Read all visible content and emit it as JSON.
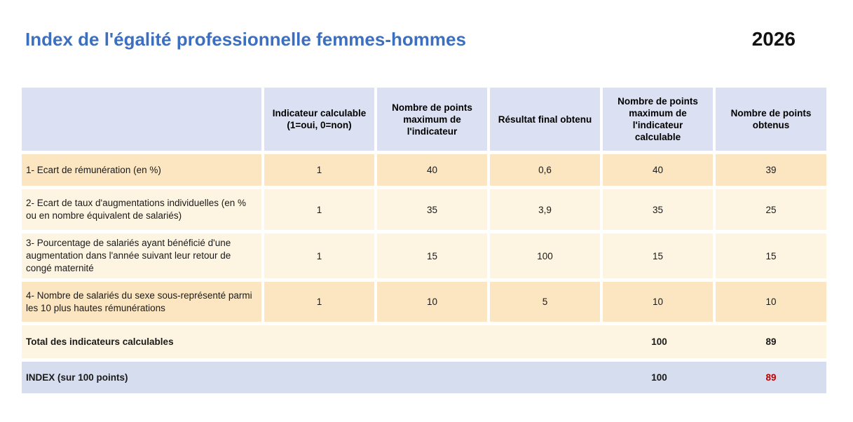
{
  "page": {
    "title": "Index de l'égalité professionnelle femmes-hommes",
    "year": "2026"
  },
  "table": {
    "column_headers": [
      "Indicateur calculable (1=oui, 0=non)",
      "Nombre de points maximum de l'indicateur",
      "Résultat final obtenu",
      "Nombre de points maximum de l'indicateur calculable",
      "Nombre de points obtenus"
    ],
    "rows": [
      {
        "label": "1- Ecart de rémunération (en %)",
        "indicateur_calculable": "1",
        "points_maximum": "40",
        "resultat_final": "0,6",
        "points_maximum_calculable": "40",
        "points_obtenus": "39"
      },
      {
        "label": "2- Ecart de taux d'augmentations individuelles (en % ou en nombre équivalent de salariés)",
        "indicateur_calculable": "1",
        "points_maximum": "35",
        "resultat_final": "3,9",
        "points_maximum_calculable": "35",
        "points_obtenus": "25"
      },
      {
        "label": "3- Pourcentage de salariés ayant bénéficié d'une augmentation dans l'année suivant leur retour de congé maternité",
        "indicateur_calculable": "1",
        "points_maximum": "15",
        "resultat_final": "100",
        "points_maximum_calculable": "15",
        "points_obtenus": "15"
      },
      {
        "label": "4- Nombre de salariés du sexe sous-représenté parmi les 10 plus hautes rémunérations",
        "indicateur_calculable": "1",
        "points_maximum": "10",
        "resultat_final": "5",
        "points_maximum_calculable": "10",
        "points_obtenus": "10"
      }
    ],
    "total_row": {
      "label": "Total des indicateurs calculables",
      "points_maximum_calculable": "100",
      "points_obtenus": "89"
    },
    "index_row": {
      "label": "INDEX (sur 100 points)",
      "points_maximum_calculable": "100",
      "points_obtenus": "89"
    }
  },
  "colors": {
    "title_blue": "#3c6fbf",
    "header_fill": "#dbe1f2",
    "row_fill_dark": "#fbe6c1",
    "row_fill_light": "#fdf4e1",
    "index_row_fill": "#d6ddee",
    "index_value_red": "#c00000"
  }
}
